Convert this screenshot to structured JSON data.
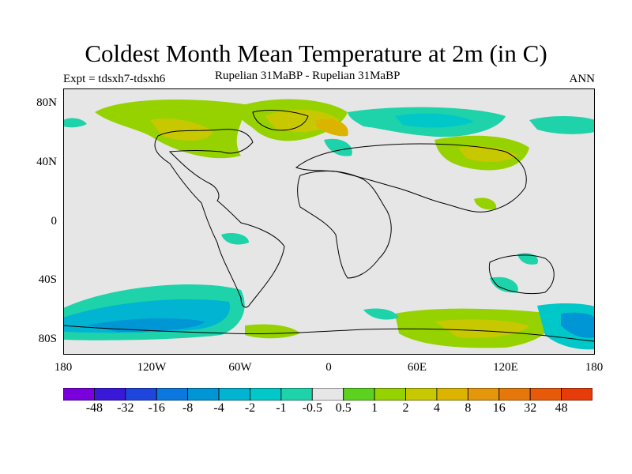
{
  "title": "Coldest Month Mean Temperature at 2m (in C)",
  "experiment": "Expt = tdsxh7-tdsxh6",
  "subtitle": "Rupelian  31MaBP - Rupelian  31MaBP",
  "season": "ANN",
  "x_ticks": [
    "180",
    "120W",
    "60W",
    "0",
    "60E",
    "120E",
    "180"
  ],
  "y_ticks": [
    "80N",
    "40N",
    "0",
    "40S",
    "80S"
  ],
  "colorbar": {
    "colors": [
      "#7a00dc",
      "#3a18d8",
      "#1e46dc",
      "#0a78dc",
      "#0096d6",
      "#00b4d2",
      "#00c8c8",
      "#1ed2aa",
      "#e6e6e6",
      "#5ad21e",
      "#96d200",
      "#c8c800",
      "#dcb400",
      "#e6960a",
      "#e6780a",
      "#e65a0a",
      "#e63c0a"
    ],
    "labels": [
      "-48",
      "-32",
      "-16",
      "-8",
      "-4",
      "-2",
      "-1",
      "-0.5",
      "0.5",
      "1",
      "2",
      "4",
      "8",
      "16",
      "32",
      "48"
    ]
  }
}
